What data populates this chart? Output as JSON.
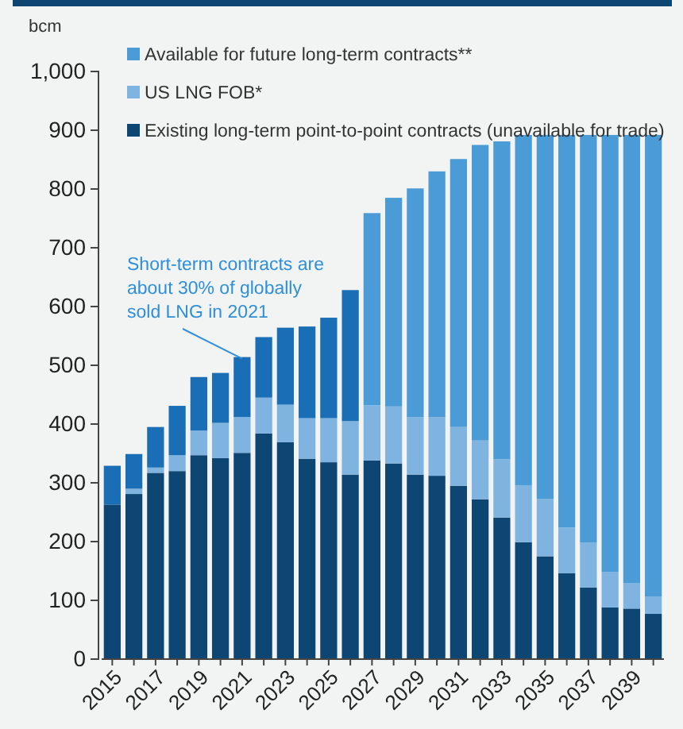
{
  "chart_data": {
    "type": "bar",
    "stacked": true,
    "ylabel": "bcm",
    "categories": [
      "2015",
      null,
      "2017",
      null,
      "2019",
      null,
      "2021",
      null,
      "2023",
      null,
      "2025",
      null,
      "2027",
      null,
      "2029",
      null,
      "2031",
      null,
      "2033",
      null,
      "2035",
      null,
      "2037",
      null,
      "2039",
      null
    ],
    "ylim": [
      0,
      1000
    ],
    "yticks": [
      0,
      100,
      200,
      300,
      400,
      500,
      600,
      700,
      800,
      900,
      {
        "value": 1000,
        "label": "1,000"
      }
    ],
    "grid": false,
    "legend": "top left",
    "series": [
      {
        "name": "Existing long-term point-to-point contracts (unavailable for trade)",
        "color": "#0d4673",
        "values": [
          263,
          281,
          317,
          320,
          347,
          342,
          351,
          384,
          369,
          341,
          335,
          314,
          338,
          333,
          314,
          312,
          295,
          272,
          241,
          199,
          175,
          146,
          122,
          88,
          86,
          77
        ]
      },
      {
        "name": "US LNG FOB*",
        "color": "#7fb3e0",
        "values": [
          0,
          9,
          9,
          27,
          42,
          60,
          61,
          61,
          64,
          69,
          75,
          91,
          94,
          97,
          98,
          100,
          100,
          100,
          99,
          97,
          98,
          78,
          76,
          60,
          43,
          29
        ]
      },
      {
        "color": "#1a6eb5",
        "values": [
          66,
          59,
          69,
          84,
          91,
          85,
          102,
          103,
          131,
          156,
          171,
          223,
          null,
          null,
          null,
          null,
          null,
          null,
          null,
          null,
          null,
          null,
          null,
          null,
          null,
          null
        ]
      },
      {
        "name": "Available for future long-term contracts**",
        "color": "#4a9bd6",
        "values": [
          null,
          null,
          null,
          null,
          null,
          null,
          null,
          null,
          null,
          null,
          null,
          null,
          327,
          355,
          389,
          418,
          456,
          503,
          541,
          596,
          619,
          668,
          694,
          744,
          763,
          786
        ]
      }
    ],
    "annotations": [
      {
        "text": "Short-term contracts are about 30% of globally sold LNG in 2021",
        "x": "2021",
        "y": 514
      }
    ]
  }
}
